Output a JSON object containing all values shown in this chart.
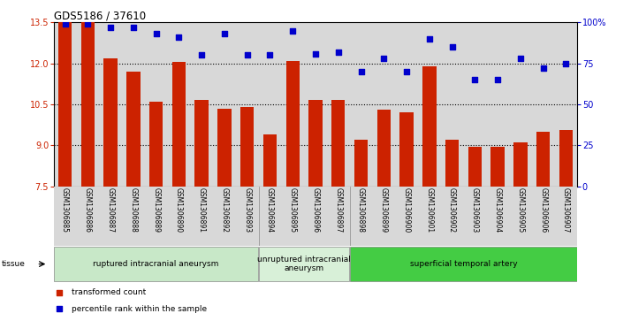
{
  "title": "GDS5186 / 37610",
  "samples": [
    "GSM1306885",
    "GSM1306886",
    "GSM1306887",
    "GSM1306888",
    "GSM1306889",
    "GSM1306890",
    "GSM1306891",
    "GSM1306892",
    "GSM1306893",
    "GSM1306894",
    "GSM1306895",
    "GSM1306896",
    "GSM1306897",
    "GSM1306898",
    "GSM1306899",
    "GSM1306900",
    "GSM1306901",
    "GSM1306902",
    "GSM1306903",
    "GSM1306904",
    "GSM1306905",
    "GSM1306906",
    "GSM1306907"
  ],
  "bar_values": [
    13.5,
    13.5,
    12.2,
    11.7,
    10.6,
    12.05,
    10.65,
    10.35,
    10.4,
    9.4,
    12.1,
    10.65,
    10.65,
    9.2,
    10.3,
    10.2,
    11.9,
    9.2,
    8.95,
    8.95,
    9.1,
    9.5,
    9.55
  ],
  "percentile_values": [
    99,
    99,
    97,
    97,
    93,
    91,
    80,
    93,
    80,
    80,
    95,
    81,
    82,
    70,
    78,
    70,
    90,
    85,
    65,
    65,
    78,
    72,
    75
  ],
  "ylim_left": [
    7.5,
    13.5
  ],
  "ylim_right": [
    0,
    100
  ],
  "yticks_left": [
    7.5,
    9.0,
    10.5,
    12.0,
    13.5
  ],
  "yticks_right": [
    0,
    25,
    50,
    75,
    100
  ],
  "bar_color": "#cc2200",
  "dot_color": "#0000cc",
  "plot_bg": "#d8d8d8",
  "tissue_groups": [
    {
      "label": "ruptured intracranial aneurysm",
      "start": 0,
      "end": 9,
      "color": "#c8e8c8"
    },
    {
      "label": "unruptured intracranial\naneurysm",
      "start": 9,
      "end": 13,
      "color": "#d8f0d8"
    },
    {
      "label": "superficial temporal artery",
      "start": 13,
      "end": 23,
      "color": "#44cc44"
    }
  ],
  "legend_bar_label": "transformed count",
  "legend_dot_label": "percentile rank within the sample",
  "tissue_label": "tissue"
}
